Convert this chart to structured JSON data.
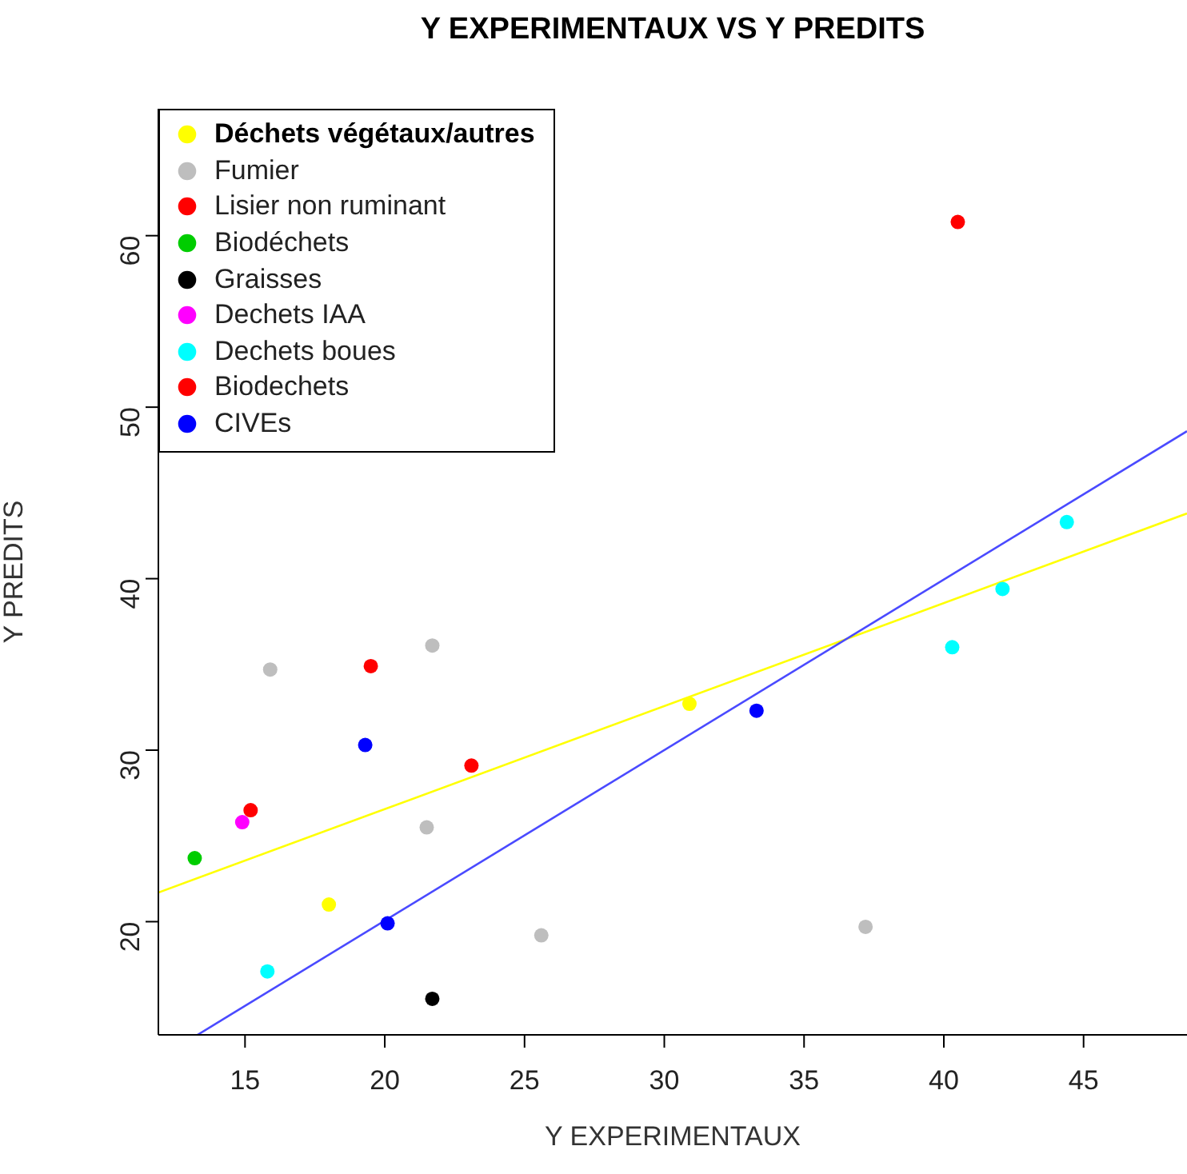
{
  "chart_data": {
    "type": "scatter",
    "title": "Y EXPERIMENTAUX VS Y PREDITS",
    "xlabel": "Y EXPERIMENTAUX",
    "ylabel": "Y PREDITS",
    "xlim": [
      11.9,
      48.7
    ],
    "ylim": [
      13.4,
      67.4
    ],
    "xticks": [
      15,
      20,
      25,
      30,
      35,
      40,
      45
    ],
    "yticks": [
      20,
      30,
      40,
      50,
      60
    ],
    "legend": "top left",
    "marker": "circle",
    "series": [
      {
        "name": "Déchets végétaux/autres",
        "color": "#ffff00",
        "x": [
          18.0,
          30.9
        ],
        "values": [
          21.0,
          32.7
        ]
      },
      {
        "name": "Fumier",
        "color": "#bebebe",
        "x": [
          15.9,
          21.7,
          21.5,
          25.6,
          37.2
        ],
        "values": [
          34.7,
          36.1,
          25.5,
          19.2,
          19.7
        ]
      },
      {
        "name": "Lisier non ruminant",
        "color": "#ff0000",
        "x": [
          15.2,
          23.1
        ],
        "values": [
          26.5,
          29.1
        ]
      },
      {
        "name": "Biodéchets",
        "color": "#00cd00",
        "x": [
          13.2
        ],
        "values": [
          23.7
        ]
      },
      {
        "name": "Graisses",
        "color": "#000000",
        "x": [
          21.7
        ],
        "values": [
          15.5
        ]
      },
      {
        "name": "Dechets IAA",
        "color": "#ff00ff",
        "x": [
          14.9
        ],
        "values": [
          25.8
        ]
      },
      {
        "name": "Dechets boues",
        "color": "#00ffff",
        "x": [
          15.8,
          40.3,
          42.1,
          44.4
        ],
        "values": [
          17.1,
          36.0,
          39.4,
          43.3
        ]
      },
      {
        "name": "Biodechets",
        "color": "#ff0000",
        "x": [
          19.5,
          40.5
        ],
        "values": [
          34.9,
          60.8
        ]
      },
      {
        "name": "CIVEs",
        "color": "#0000ff",
        "x": [
          19.3,
          20.1,
          33.3
        ],
        "values": [
          30.3,
          19.9,
          32.3
        ]
      },
      {
        "type": "line",
        "marker": "none",
        "color": "#ffff00",
        "x": [
          11.9,
          48.7
        ],
        "values": [
          21.7,
          43.8
        ]
      },
      {
        "type": "line",
        "marker": "none",
        "color": "#4a4aff",
        "x": [
          13.3,
          48.7
        ],
        "values": [
          13.4,
          48.6
        ]
      }
    ]
  }
}
